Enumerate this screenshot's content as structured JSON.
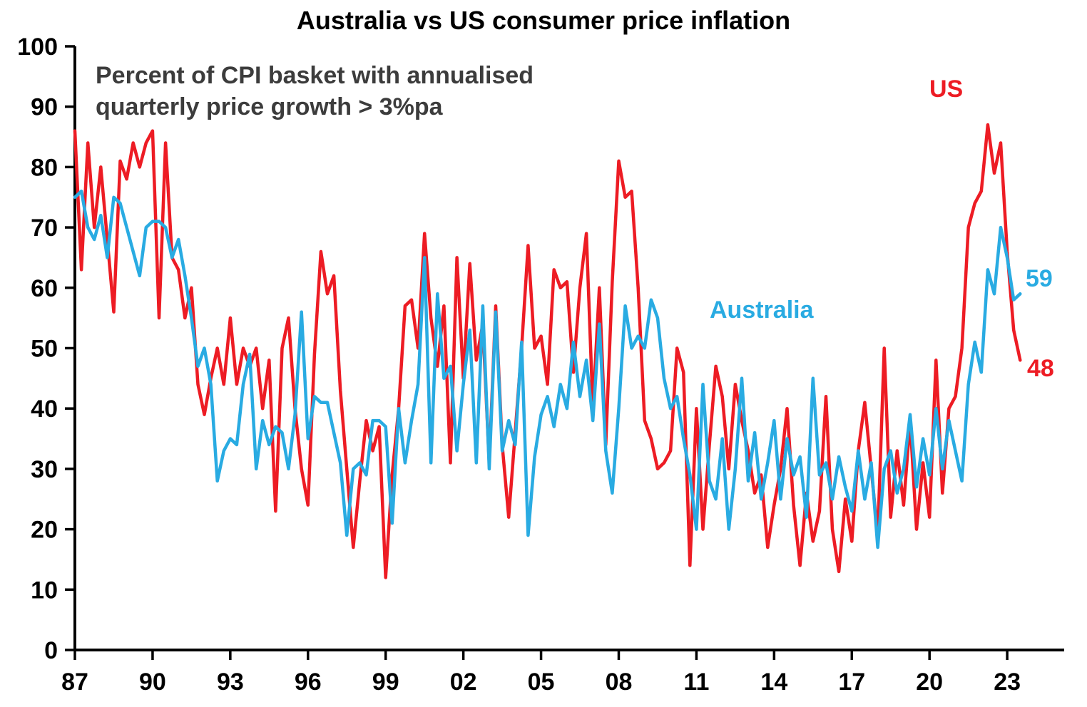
{
  "chart_data": {
    "type": "line",
    "title": "Australia vs US consumer price inflation",
    "subtitle_line1": "Percent of CPI basket with annualised",
    "subtitle_line2": "quarterly price growth > 3%pa",
    "xlabel": "",
    "ylabel": "",
    "ylim": [
      0,
      100
    ],
    "y_ticks": [
      0,
      10,
      20,
      30,
      40,
      50,
      60,
      70,
      80,
      90,
      100
    ],
    "x_axis": {
      "start": 1987,
      "end": 2025.2
    },
    "x_start": 1987,
    "x_step": 0.25,
    "x_ticks": [
      {
        "value": 1987,
        "label": "87"
      },
      {
        "value": 1990,
        "label": "90"
      },
      {
        "value": 1993,
        "label": "93"
      },
      {
        "value": 1996,
        "label": "96"
      },
      {
        "value": 1999,
        "label": "99"
      },
      {
        "value": 2002,
        "label": "02"
      },
      {
        "value": 2005,
        "label": "05"
      },
      {
        "value": 2008,
        "label": "08"
      },
      {
        "value": 2011,
        "label": "11"
      },
      {
        "value": 2014,
        "label": "14"
      },
      {
        "value": 2017,
        "label": "17"
      },
      {
        "value": 2020,
        "label": "20"
      },
      {
        "value": 2023,
        "label": "23"
      }
    ],
    "grid": "off",
    "legend": "inline-labels",
    "axis_color": "#000000",
    "series": [
      {
        "name": "US",
        "label_text": "US",
        "color": "#ed1c24",
        "end_label": "48",
        "values": [
          86,
          63,
          84,
          70,
          80,
          68,
          56,
          81,
          78,
          84,
          80,
          84,
          86,
          55,
          84,
          65,
          63,
          55,
          60,
          44,
          39,
          45,
          50,
          44,
          55,
          44,
          50,
          47,
          50,
          40,
          48,
          23,
          50,
          55,
          40,
          30,
          24,
          49,
          66,
          59,
          62,
          43,
          30,
          17,
          28,
          38,
          33,
          37,
          12,
          29,
          40,
          57,
          58,
          50,
          69,
          55,
          47,
          57,
          31,
          65,
          45,
          64,
          48,
          54,
          31,
          57,
          34,
          22,
          36,
          50,
          67,
          50,
          52,
          44,
          63,
          60,
          61,
          46,
          60,
          69,
          40,
          60,
          34,
          61,
          81,
          75,
          76,
          60,
          38,
          35,
          30,
          31,
          33,
          50,
          46,
          14,
          40,
          20,
          34,
          47,
          42,
          30,
          44,
          38,
          33,
          26,
          29,
          17,
          24,
          30,
          40,
          24,
          14,
          26,
          18,
          23,
          42,
          20,
          13,
          25,
          18,
          33,
          41,
          30,
          19,
          50,
          22,
          33,
          24,
          38,
          20,
          31,
          22,
          48,
          26,
          40,
          42,
          50,
          70,
          74,
          76,
          87,
          79,
          84,
          66,
          53,
          48
        ]
      },
      {
        "name": "Australia",
        "label_text": "Australia",
        "color": "#29abe2",
        "end_label": "59",
        "values": [
          75,
          76,
          70,
          68,
          72,
          65,
          75,
          74,
          70,
          66,
          62,
          70,
          71,
          71,
          70,
          65,
          68,
          62,
          55,
          47,
          50,
          44,
          28,
          33,
          35,
          34,
          44,
          49,
          30,
          38,
          34,
          37,
          36,
          30,
          39,
          56,
          35,
          42,
          41,
          41,
          36,
          31,
          19,
          30,
          31,
          29,
          38,
          38,
          37,
          21,
          40,
          31,
          38,
          44,
          65,
          31,
          59,
          45,
          47,
          33,
          44,
          53,
          31,
          57,
          30,
          56,
          33,
          38,
          34,
          51,
          19,
          32,
          39,
          42,
          37,
          44,
          40,
          51,
          42,
          48,
          38,
          54,
          33,
          26,
          40,
          57,
          50,
          52,
          50,
          58,
          55,
          45,
          40,
          42,
          35,
          29,
          20,
          44,
          28,
          25,
          35,
          20,
          30,
          45,
          28,
          36,
          25,
          31,
          38,
          25,
          35,
          29,
          32,
          22,
          45,
          29,
          31,
          25,
          32,
          27,
          23,
          33,
          25,
          31,
          17,
          30,
          33,
          26,
          30,
          39,
          27,
          35,
          29,
          40,
          30,
          38,
          33,
          28,
          44,
          51,
          46,
          63,
          59,
          70,
          65,
          58,
          59
        ]
      }
    ]
  }
}
